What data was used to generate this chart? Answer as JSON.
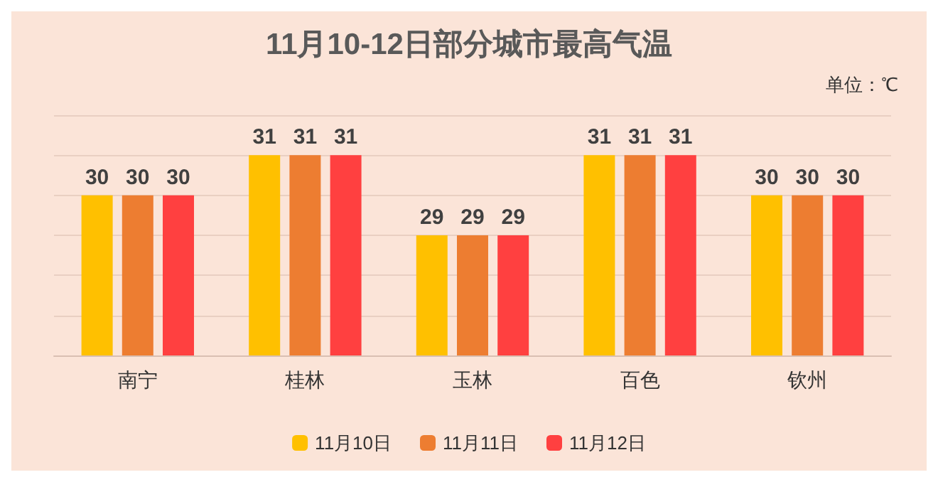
{
  "chart_data": {
    "type": "bar",
    "title": "11月10-12日部分城市最高气温",
    "annotations": [
      "单位：℃"
    ],
    "categories": [
      "南宁",
      "桂林",
      "玉林",
      "百色",
      "钦州"
    ],
    "series": [
      {
        "name": "11月10日",
        "color": "#ffc000",
        "values": [
          30,
          31,
          29,
          31,
          30
        ]
      },
      {
        "name": "11月11日",
        "color": "#ed7d31",
        "values": [
          30,
          31,
          29,
          31,
          30
        ]
      },
      {
        "name": "11月12日",
        "color": "#ff4040",
        "values": [
          30,
          31,
          29,
          31,
          30
        ]
      }
    ],
    "ylim": [
      26,
      32
    ],
    "yticks": [
      26,
      27,
      28,
      29,
      30,
      31,
      32
    ],
    "tick_labels": "x",
    "grid": "y",
    "data_labels": true,
    "legend": "bottom"
  }
}
